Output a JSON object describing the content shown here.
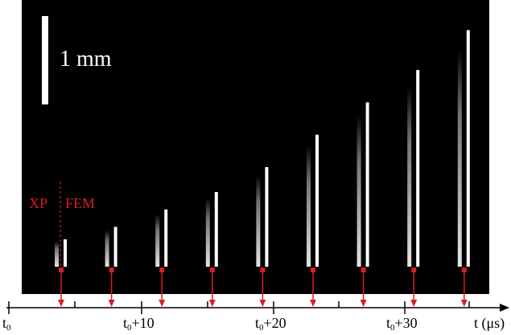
{
  "panel": {
    "background": "#000000",
    "scale_bar_label": "1 mm",
    "xp_label": "XP",
    "fem_label": "FEM"
  },
  "time_axis": {
    "ticks": [
      {
        "base": "t",
        "sub": "0",
        "suffix": ""
      },
      {
        "base": "t",
        "sub": "0",
        "suffix": "+10"
      },
      {
        "base": "t",
        "sub": "0",
        "suffix": "+20"
      },
      {
        "base": "t",
        "sub": "0",
        "suffix": "+30"
      }
    ],
    "title": "t (μs)"
  },
  "frames": [
    {
      "height": 0.11
    },
    {
      "height": 0.16
    },
    {
      "height": 0.23
    },
    {
      "height": 0.3
    },
    {
      "height": 0.4
    },
    {
      "height": 0.53
    },
    {
      "height": 0.66
    },
    {
      "height": 0.79
    },
    {
      "height": 0.95
    }
  ],
  "colors": {
    "marker": "#d51f26",
    "axis": "#000000",
    "jet": "#ffffff"
  }
}
